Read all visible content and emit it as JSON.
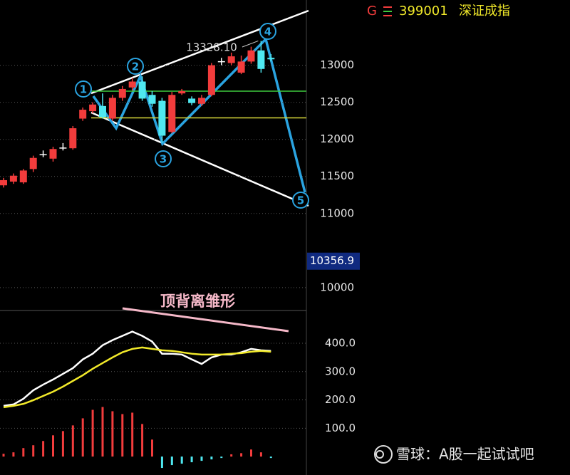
{
  "header": {
    "code_prefix": "G",
    "code": "399001",
    "name": "深证成指"
  },
  "watermark": "雪球：A股一起试试吧",
  "chart_data": [
    {
      "type": "candlestick",
      "open": [
        11380,
        11430,
        11420,
        11600,
        11800,
        11740,
        11890,
        11880,
        12280,
        12380,
        12450,
        12280,
        12560,
        12700,
        12780,
        12600,
        12520,
        12100,
        12620,
        12550,
        12480,
        12600,
        13055,
        13030,
        12900,
        13050,
        13200,
        13100
      ],
      "close": [
        11450,
        11510,
        11580,
        11750,
        11800,
        11870,
        11890,
        12150,
        12400,
        12470,
        12300,
        12560,
        12680,
        12780,
        12550,
        12480,
        12050,
        12600,
        12650,
        12490,
        12560,
        13000,
        13055,
        13120,
        13050,
        13200,
        12950,
        13080
      ],
      "high": [
        11480,
        11540,
        11600,
        11780,
        11850,
        11900,
        11950,
        12180,
        12430,
        12500,
        12620,
        12600,
        12720,
        12830,
        12850,
        12650,
        12560,
        12640,
        12680,
        12580,
        12600,
        13030,
        13100,
        13170,
        13130,
        13250,
        13328.1,
        13150
      ],
      "low": [
        11350,
        11400,
        11400,
        11560,
        11760,
        11700,
        11850,
        11860,
        12250,
        12350,
        12280,
        12250,
        12520,
        12660,
        12520,
        12440,
        11950,
        12080,
        12600,
        12460,
        12450,
        12580,
        13000,
        13000,
        12880,
        13020,
        12900,
        13050
      ],
      "up_color": "#f23c3c",
      "down_color": "#4fe8f0",
      "flat_color": "#ffffff",
      "ylim": [
        9730,
        13880
      ],
      "yticks": [
        10000,
        11000,
        11500,
        12000,
        12500,
        13000
      ],
      "grid": true,
      "hlines": [
        {
          "value": 12650,
          "color": "#3ec93e"
        },
        {
          "value": 12290,
          "color": "#d8d83a"
        }
      ],
      "high_label": "13328.10",
      "current_price": 10356.9,
      "annotations": [
        "1",
        "2",
        "3",
        "4",
        "5"
      ]
    },
    {
      "type": "macd",
      "title": "顶背离雏形",
      "series": [
        {
          "color": "#ffffff",
          "values": [
            179,
            184,
            204,
            234,
            254,
            272,
            292,
            312,
            343,
            363,
            393,
            411,
            426,
            441,
            426,
            406,
            363,
            363,
            360,
            343,
            327,
            350,
            360,
            360,
            368,
            380,
            375,
            373
          ]
        },
        {
          "color": "#f2ea2a",
          "values": [
            174,
            179,
            186,
            199,
            214,
            229,
            247,
            267,
            287,
            310,
            330,
            350,
            368,
            380,
            385,
            380,
            375,
            373,
            368,
            363,
            360,
            360,
            360,
            363,
            365,
            370,
            373,
            370
          ]
        }
      ],
      "histogram": [
        10,
        15,
        30,
        40,
        55,
        75,
        90,
        110,
        135,
        165,
        175,
        160,
        150,
        155,
        115,
        60,
        -40,
        -30,
        -25,
        -20,
        -15,
        -10,
        -5,
        8,
        12,
        25,
        15,
        -5
      ],
      "hist_up_color": "#f23c3c",
      "hist_down_color": "#4fe8f0",
      "ylim": [
        -65,
        513
      ],
      "yticks": [
        {
          "value": 100,
          "label": "100.0"
        },
        {
          "value": 200,
          "label": "200.0"
        },
        {
          "value": 300,
          "label": "300.0"
        },
        {
          "value": 400,
          "label": "400.0"
        }
      ]
    }
  ]
}
